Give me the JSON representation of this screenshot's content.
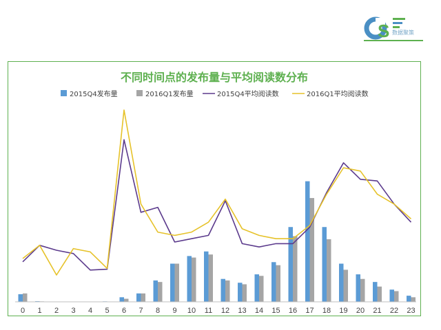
{
  "logo": {
    "text": "数据聚策"
  },
  "colors": {
    "q4_bar": "#5b9bd5",
    "q1_bar": "#a5a5a5",
    "q4_line": "#5b3a8c",
    "q1_line": "#e6c229",
    "frame": "#5db04f",
    "title": "#5db04f"
  },
  "chart_data": {
    "type": "bar",
    "title": "不同时间点的发布量与平均阅读数分布",
    "xlabel": "",
    "ylabel": "",
    "legend_position": "top",
    "grid": false,
    "categories": [
      "0",
      "1",
      "2",
      "3",
      "4",
      "5",
      "6",
      "7",
      "8",
      "9",
      "10",
      "11",
      "12",
      "13",
      "14",
      "15",
      "16",
      "17",
      "18",
      "19",
      "20",
      "21",
      "22",
      "23"
    ],
    "bar_ylim": [
      0,
      100
    ],
    "line_ylim": [
      0,
      100
    ],
    "series": [
      {
        "name": "2015Q4发布量",
        "kind": "bar",
        "values": [
          5,
          0.4,
          0,
          0,
          0,
          0.3,
          3,
          5.5,
          14,
          25,
          30,
          33,
          15,
          12.5,
          18,
          26,
          49,
          79,
          49,
          25,
          18,
          13,
          8,
          4
        ]
      },
      {
        "name": "2016Q1发布量",
        "kind": "bar",
        "values": [
          5.5,
          0.3,
          0,
          0,
          0,
          0.2,
          2,
          5.5,
          13,
          25,
          29,
          31,
          14,
          11.5,
          17,
          24,
          43,
          68,
          41,
          21,
          15,
          10,
          7,
          3
        ]
      },
      {
        "name": "2015Q4平均阅读数",
        "kind": "line",
        "values": [
          38,
          48,
          45,
          43,
          33,
          33.5,
          112,
          68,
          71,
          50,
          52,
          54,
          75,
          49,
          47,
          49,
          49,
          59,
          80,
          98,
          88,
          87,
          73,
          62
        ]
      },
      {
        "name": "2016Q1平均阅读数",
        "kind": "line",
        "values": [
          40,
          48,
          30,
          46,
          44,
          34,
          130,
          73,
          56,
          54,
          56,
          62,
          76,
          58,
          54,
          52,
          52,
          60,
          79,
          95,
          93,
          79,
          73,
          64
        ]
      }
    ]
  }
}
